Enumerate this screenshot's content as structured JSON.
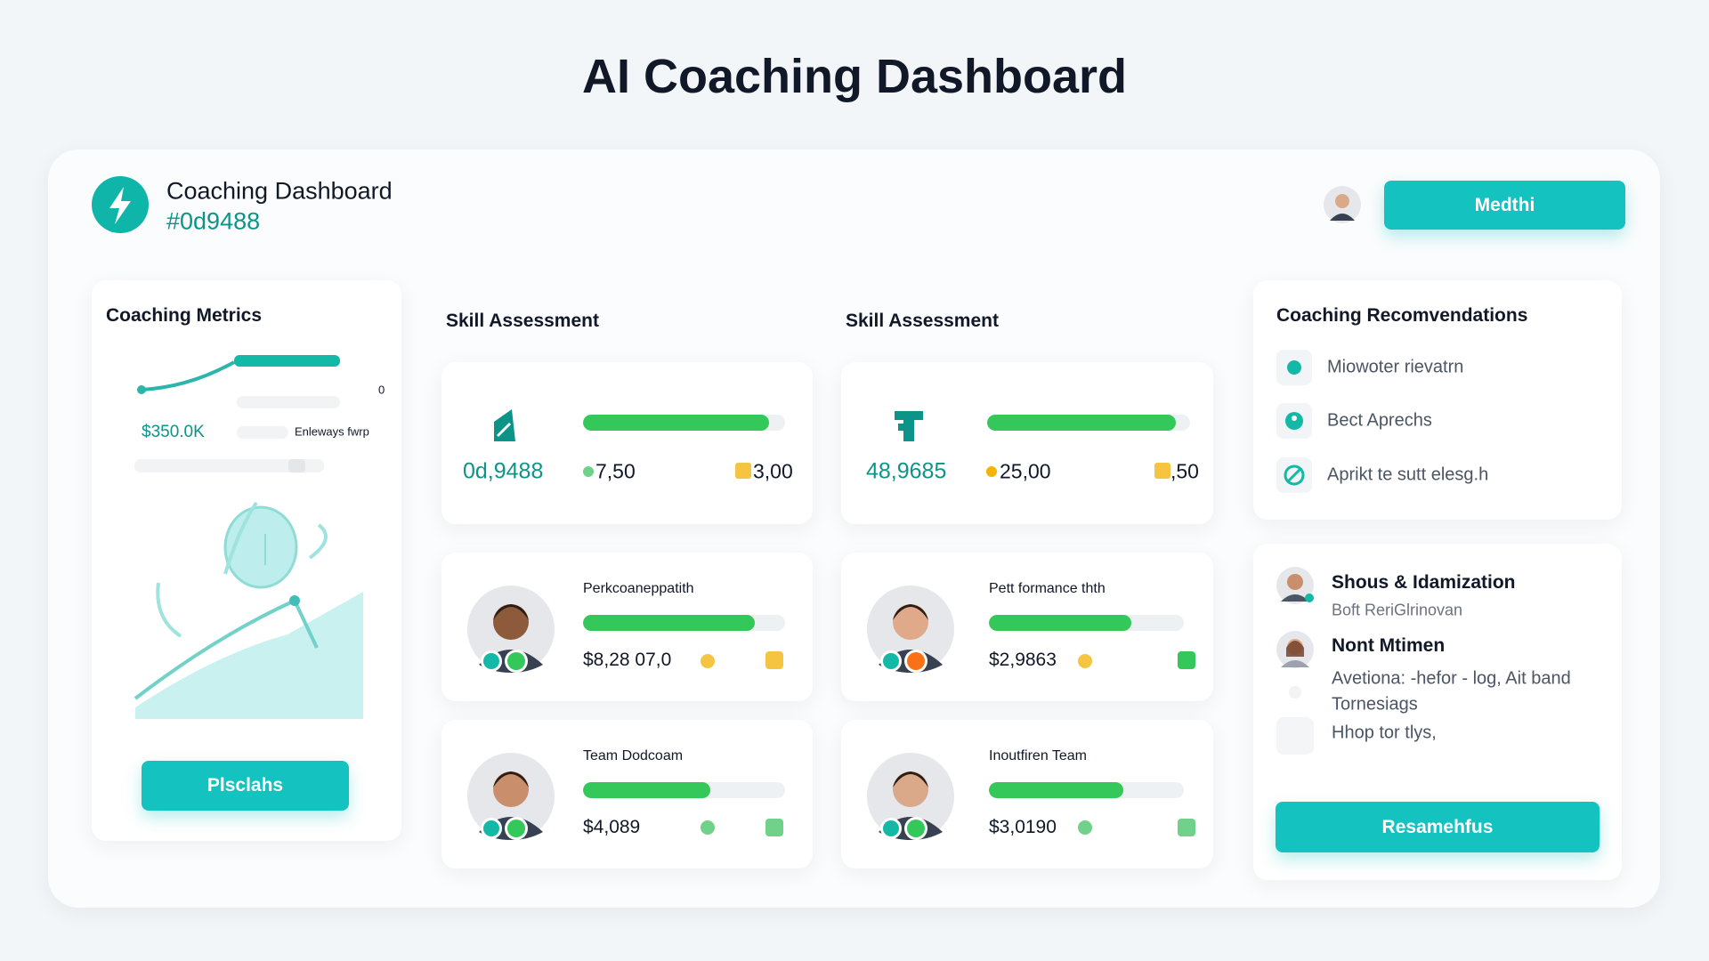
{
  "page_title": "AI Coaching Dashboard",
  "header": {
    "title": "Coaching Dashboard",
    "subtitle": "#0d9488",
    "button": "Medthi"
  },
  "metrics": {
    "title": "Coaching Metrics",
    "axis_value": 0,
    "value": "$350.0K",
    "legend": "Enleways fwrp",
    "button": "Plsclahs"
  },
  "skills": [
    {
      "title": "Skill Assessment",
      "summary": {
        "value": "0d,9488",
        "stat1": "7,50",
        "stat2": "3,00",
        "progress": 0.92
      },
      "people": [
        {
          "label": "Perkcoaneppatith",
          "value": "$8,28 07,0",
          "progress": 0.85
        },
        {
          "label": "Team Dodcoam",
          "value": "$4,089",
          "progress": 0.63
        }
      ]
    },
    {
      "title": "Skill Assessment",
      "summary": {
        "value": "48,9685",
        "stat1": "25,00",
        "stat2": ",50",
        "progress": 0.93
      },
      "people": [
        {
          "label": "Pett formance thth",
          "value": "$2,9863",
          "progress": 0.73
        },
        {
          "label": "Inoutfiren Team",
          "value": "$3,0190",
          "progress": 0.69
        }
      ]
    }
  ],
  "recommendations": {
    "title": "Coaching Recomvendations",
    "items": [
      "Miowoter rievatrn",
      "Bect Aprechs",
      "Aprikt te sutt elesg.h"
    ]
  },
  "team": {
    "members": [
      {
        "name": "Shous & Idamization",
        "role": "Boft ReriGlrinovan"
      },
      {
        "name": "Nont Mtimen",
        "lines": [
          "Avetiona: -hefor - log, Ait band",
          "Tornesiags",
          "Hhop tor tlys,"
        ]
      }
    ],
    "button": "Resamehfus"
  }
}
